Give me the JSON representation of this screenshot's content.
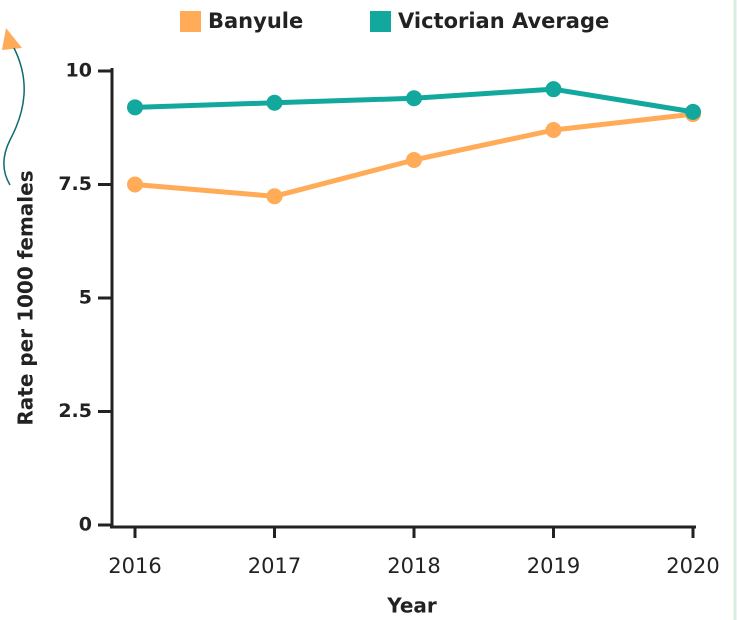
{
  "chart_data": {
    "type": "line",
    "x_label": "Year",
    "y_label": "Rate per 1000 females",
    "categories": [
      "2016",
      "2017",
      "2018",
      "2019",
      "2020"
    ],
    "series": [
      {
        "name": "Banyule",
        "color": "#ffab57",
        "values": [
          7.5,
          7.24,
          8.04,
          8.7,
          9.05
        ]
      },
      {
        "name": "Victorian Average",
        "color": "#13a89e",
        "values": [
          9.2,
          9.3,
          9.4,
          9.6,
          9.1
        ]
      }
    ],
    "ylim": [
      0,
      10
    ],
    "yticks": [
      0,
      2.5,
      5,
      7.5,
      10
    ],
    "grid": false
  }
}
